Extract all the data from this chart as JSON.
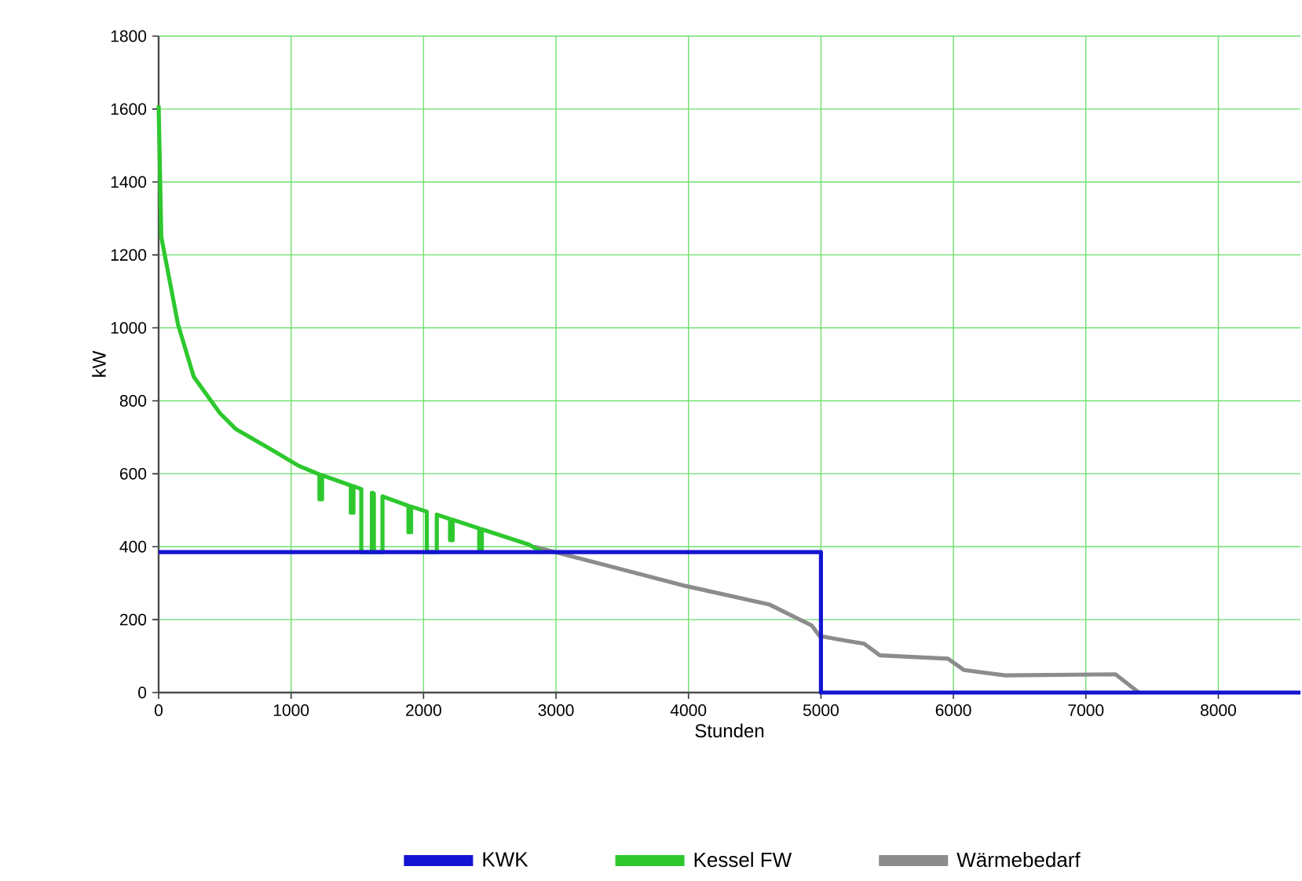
{
  "chart_data": {
    "type": "line",
    "xlabel": "Stunden",
    "ylabel": "kW",
    "xlim": [
      0,
      8620
    ],
    "xticks": [
      0,
      1000,
      2000,
      3000,
      4000,
      5000,
      6000,
      7000,
      8000
    ],
    "ylim": [
      0,
      1800
    ],
    "yticks": [
      0,
      200,
      400,
      600,
      800,
      1000,
      1200,
      1400,
      1600,
      1800
    ],
    "grid": true,
    "legend": "bottom",
    "marker": "none",
    "line_style": "solid",
    "series": [
      {
        "name": "KWK",
        "color": "#1414d2",
        "x": [
          0,
          5000,
          5000,
          8620
        ],
        "values": [
          385,
          385,
          0,
          0
        ]
      },
      {
        "name": "Kessel FW",
        "color": "#2ec82e",
        "x": [
          0,
          20,
          146,
          265,
          463,
          581,
          858,
          1056,
          1214,
          1214,
          1234,
          1234,
          1451,
          1451,
          1471,
          1471,
          1530,
          1530,
          1610,
          1610,
          1625,
          1625,
          1690,
          1690,
          1886,
          1886,
          1906,
          1906,
          2025,
          2025,
          2100,
          2100,
          2200,
          2200,
          2220,
          2220,
          2420,
          2420,
          2440,
          2440,
          2795,
          2900
        ],
        "values": [
          1610,
          1250,
          1010,
          866,
          766,
          723,
          665,
          622,
          598,
          530,
          530,
          596,
          568,
          493,
          493,
          566,
          558,
          385,
          385,
          548,
          546,
          385,
          385,
          538,
          512,
          440,
          440,
          510,
          496,
          385,
          385,
          488,
          476,
          418,
          418,
          474,
          450,
          392,
          392,
          448,
          406,
          385
        ]
      },
      {
        "name": "Wärmebedarf",
        "color": "#8c8c8c",
        "x": [
          2835,
          3982,
          4614,
          4930,
          4990,
          5208,
          5326,
          5445,
          5959,
          6078,
          6394,
          7224,
          7400
        ],
        "values": [
          400,
          292,
          241,
          184,
          155,
          141,
          134,
          102,
          93,
          62,
          47,
          50,
          0
        ]
      }
    ]
  }
}
